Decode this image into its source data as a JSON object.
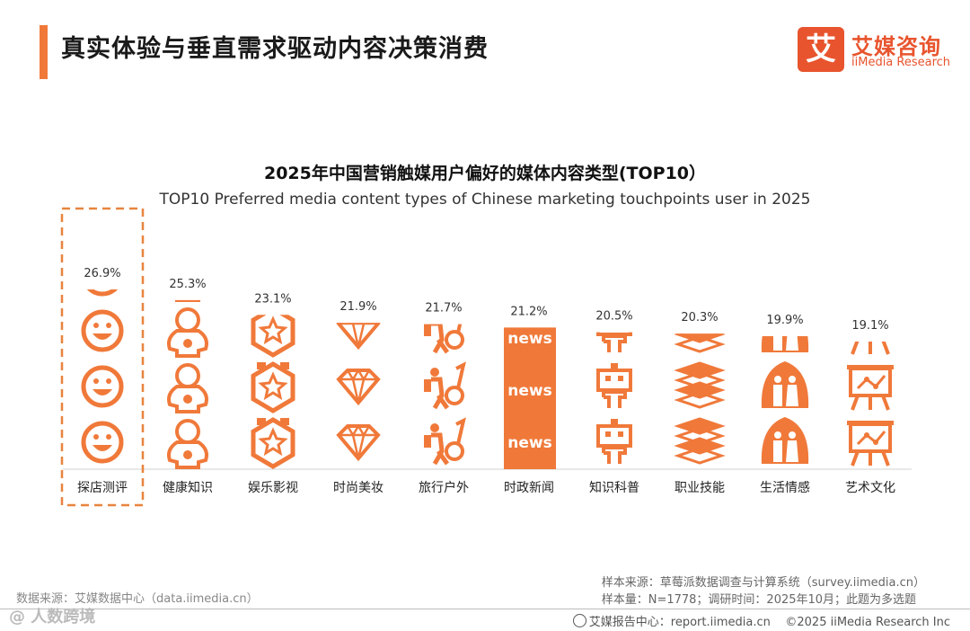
{
  "header": {
    "title": "真实体验与垂直需求驱动内容决策消费",
    "logo_mark": "艾",
    "logo_cn": "艾媒咨询",
    "logo_en": "iiMedia Research"
  },
  "chart_data": {
    "type": "bar",
    "title": "2025年中国营销触媒用户偏好的媒体内容类型(TOP10）",
    "subtitle": "TOP10 Preferred media content types of Chinese marketing touchpoints user in 2025",
    "categories": [
      "探店测评",
      "健康知识",
      "娱乐影视",
      "时尚美妆",
      "旅行户外",
      "时政新闻",
      "知识科普",
      "职业技能",
      "生活情感",
      "艺术文化"
    ],
    "values": [
      26.9,
      25.3,
      23.1,
      21.9,
      21.7,
      21.2,
      20.5,
      20.3,
      19.9,
      19.1
    ],
    "value_labels": [
      "26.9%",
      "25.3%",
      "23.1%",
      "21.9%",
      "21.7%",
      "21.2%",
      "20.5%",
      "20.3%",
      "19.9%",
      "19.1%"
    ],
    "icons": [
      "smile-icon",
      "baby-icon",
      "medal-icon",
      "diamond-icon",
      "traveler-icon",
      "news-icon",
      "robot-icon",
      "books-icon",
      "couple-icon",
      "easel-icon"
    ],
    "news_text": "news",
    "highlight_index": 0,
    "color": "#f0793a",
    "highlight_border": "#e8843f",
    "ylim": [
      0,
      30
    ]
  },
  "footer": {
    "source_left": "数据来源：艾媒数据中心（data.iimedia.cn）",
    "sample_source": "样本来源：草莓派数据调查与计算系统（survey.iimedia.cn）",
    "sample_size": "样本量：N=1778；调研时间：2025年10月；此题为多选题",
    "report_center": "艾媒报告中心：report.iimedia.cn",
    "copyright": "©2025  iiMedia Research  Inc",
    "watermark": "@ 人数跨境"
  }
}
